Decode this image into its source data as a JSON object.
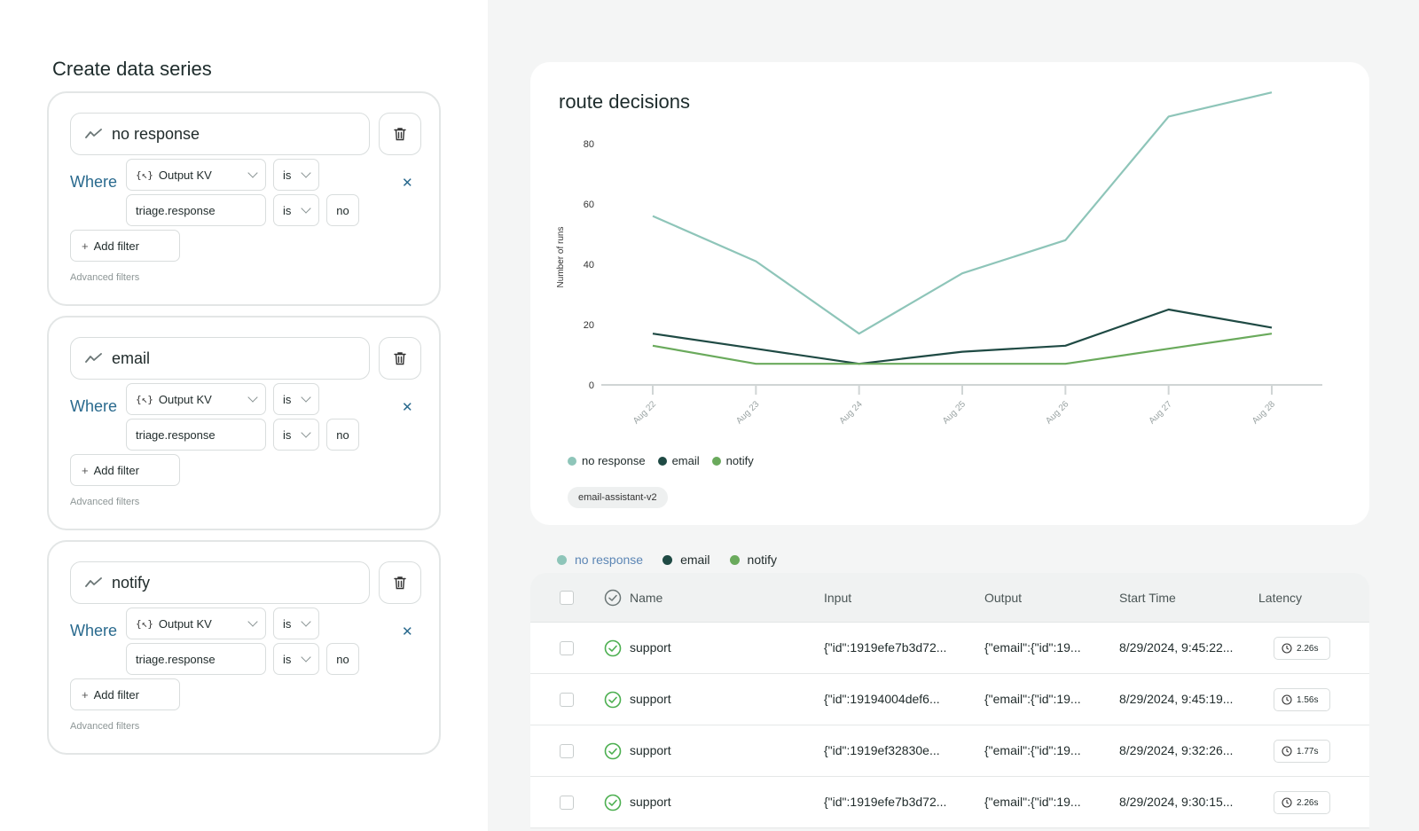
{
  "panel_title": "Create data series",
  "series_cards": [
    {
      "name": "no response",
      "where": "Where",
      "field": "Output KV",
      "field_icon": "{↖}",
      "op1": "is",
      "key": "triage.response",
      "op2": "is",
      "value": "no",
      "add_filter": "Add filter",
      "advanced": "Advanced filters"
    },
    {
      "name": "email",
      "where": "Where",
      "field": "Output KV",
      "field_icon": "{↖}",
      "op1": "is",
      "key": "triage.response",
      "op2": "is",
      "value": "no",
      "add_filter": "Add filter",
      "advanced": "Advanced filters"
    },
    {
      "name": "notify",
      "where": "Where",
      "field": "Output KV",
      "field_icon": "{↖}",
      "op1": "is",
      "key": "triage.response",
      "op2": "is",
      "value": "no",
      "add_filter": "Add filter",
      "advanced": "Advanced filters"
    }
  ],
  "chart_tag": "email-assistant-v2",
  "chart_data": {
    "type": "line",
    "title": "route decisions",
    "xlabel": "",
    "ylabel": "Number of runs",
    "categories": [
      "Aug 22",
      "Aug 23",
      "Aug 24",
      "Aug 25",
      "Aug 26",
      "Aug 27",
      "Aug 28"
    ],
    "yticks": [
      0,
      20,
      40,
      60,
      80
    ],
    "ylim": [
      0,
      80
    ],
    "grid": false,
    "legend_position": "bottom-left",
    "series": [
      {
        "name": "no response",
        "color": "#8ec5b9",
        "values": [
          56,
          41,
          17,
          37,
          48,
          89,
          97
        ]
      },
      {
        "name": "email",
        "color": "#1f4a44",
        "values": [
          17,
          12,
          7,
          11,
          13,
          25,
          19
        ]
      },
      {
        "name": "notify",
        "color": "#6aaa5c",
        "values": [
          13,
          7,
          7,
          7,
          7,
          12,
          17
        ]
      }
    ]
  },
  "table_tabs": [
    {
      "label": "no response",
      "color": "#8ec5b9",
      "active": true
    },
    {
      "label": "email",
      "color": "#1f4a44",
      "active": false
    },
    {
      "label": "notify",
      "color": "#6aaa5c",
      "active": false
    }
  ],
  "table": {
    "headers": {
      "name": "Name",
      "input": "Input",
      "output": "Output",
      "start": "Start Time",
      "latency": "Latency"
    },
    "rows": [
      {
        "name": "support",
        "input": "{\"id\":1919efe7b3d72...",
        "output": "{\"email\":{\"id\":19...",
        "start": "8/29/2024, 9:45:22...",
        "latency": "2.26s"
      },
      {
        "name": "support",
        "input": "{\"id\":19194004def6...",
        "output": "{\"email\":{\"id\":19...",
        "start": "8/29/2024, 9:45:19...",
        "latency": "1.56s"
      },
      {
        "name": "support",
        "input": "{\"id\":1919ef32830e...",
        "output": "{\"email\":{\"id\":19...",
        "start": "8/29/2024, 9:32:26...",
        "latency": "1.77s"
      },
      {
        "name": "support",
        "input": "{\"id\":1919efe7b3d72...",
        "output": "{\"email\":{\"id\":19...",
        "start": "8/29/2024, 9:30:15...",
        "latency": "2.26s"
      }
    ]
  },
  "colors": {
    "accent_blue": "#2a6a8e",
    "success_green": "#4caf50"
  }
}
